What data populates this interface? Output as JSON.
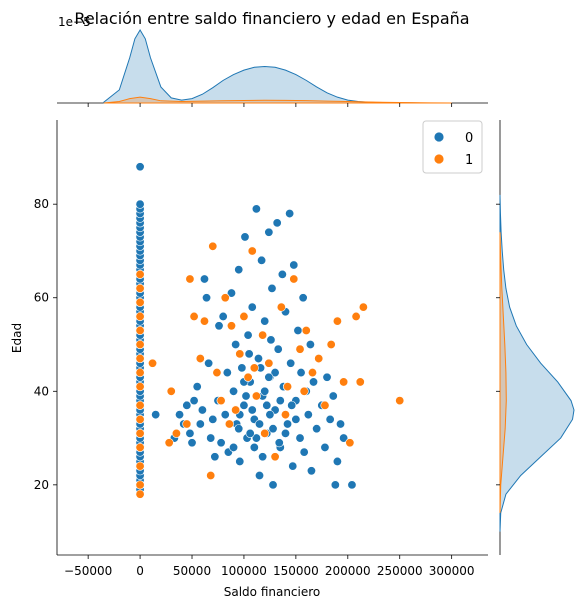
{
  "chart_data": {
    "type": "scatter",
    "title": "Relación entre saldo financiero y edad en España",
    "xlabel": "Saldo financiero",
    "ylabel": "Edad",
    "top_axis_multiplier": "1e−5",
    "xlim": [
      -80000,
      335000
    ],
    "ylim": [
      5,
      98
    ],
    "x_ticks": [
      -50000,
      0,
      50000,
      100000,
      150000,
      200000,
      250000,
      300000
    ],
    "x_tick_labels": [
      "−50000",
      "0",
      "50000",
      "100000",
      "150000",
      "200000",
      "250000",
      "300000"
    ],
    "y_ticks": [
      20,
      40,
      60,
      80
    ],
    "y_tick_labels": [
      "20",
      "40",
      "60",
      "80"
    ],
    "grid": false,
    "legend": {
      "placement": "top-right",
      "entries": [
        {
          "label": "0",
          "color": "#1f77b4"
        },
        {
          "label": "1",
          "color": "#ff7f0e"
        }
      ]
    },
    "series": [
      {
        "name": "0",
        "color": "#1f77b4",
        "zero_balance_ages": [
          18,
          19,
          20,
          21,
          22,
          23,
          24,
          25,
          26,
          27,
          28,
          29,
          30,
          31,
          32,
          33,
          34,
          35,
          36,
          37,
          38,
          39,
          40,
          41,
          42,
          43,
          44,
          45,
          46,
          47,
          48,
          49,
          50,
          51,
          52,
          53,
          54,
          55,
          56,
          57,
          58,
          59,
          60,
          61,
          62,
          63,
          64,
          65,
          66,
          67,
          68,
          69,
          70,
          71,
          72,
          73,
          74,
          75,
          76,
          77,
          78,
          79,
          80,
          88
        ],
        "points": [
          [
            15000,
            35
          ],
          [
            33000,
            30
          ],
          [
            38000,
            35
          ],
          [
            42000,
            33
          ],
          [
            45000,
            37
          ],
          [
            48000,
            31
          ],
          [
            50000,
            29
          ],
          [
            52000,
            38
          ],
          [
            55000,
            41
          ],
          [
            58000,
            33
          ],
          [
            60000,
            36
          ],
          [
            62000,
            64
          ],
          [
            64000,
            60
          ],
          [
            66000,
            46
          ],
          [
            68000,
            30
          ],
          [
            70000,
            34
          ],
          [
            72000,
            26
          ],
          [
            75000,
            38
          ],
          [
            76000,
            54
          ],
          [
            78000,
            29
          ],
          [
            80000,
            56
          ],
          [
            82000,
            35
          ],
          [
            84000,
            44
          ],
          [
            85000,
            27
          ],
          [
            88000,
            61
          ],
          [
            90000,
            40
          ],
          [
            92000,
            50
          ],
          [
            93000,
            33
          ],
          [
            95000,
            66
          ],
          [
            96000,
            25
          ],
          [
            98000,
            45
          ],
          [
            100000,
            37
          ],
          [
            101000,
            73
          ],
          [
            103000,
            30
          ],
          [
            104000,
            52
          ],
          [
            106000,
            42
          ],
          [
            108000,
            58
          ],
          [
            110000,
            34
          ],
          [
            112000,
            79
          ],
          [
            114000,
            47
          ],
          [
            115000,
            22
          ],
          [
            117000,
            68
          ],
          [
            118000,
            39
          ],
          [
            120000,
            55
          ],
          [
            122000,
            31
          ],
          [
            124000,
            74
          ],
          [
            125000,
            43
          ],
          [
            127000,
            62
          ],
          [
            128000,
            20
          ],
          [
            130000,
            36
          ],
          [
            132000,
            76
          ],
          [
            133000,
            49
          ],
          [
            135000,
            28
          ],
          [
            137000,
            65
          ],
          [
            138000,
            41
          ],
          [
            140000,
            57
          ],
          [
            142000,
            33
          ],
          [
            144000,
            78
          ],
          [
            145000,
            46
          ],
          [
            147000,
            24
          ],
          [
            148000,
            67
          ],
          [
            150000,
            38
          ],
          [
            152000,
            53
          ],
          [
            154000,
            30
          ],
          [
            155000,
            44
          ],
          [
            157000,
            60
          ],
          [
            158000,
            27
          ],
          [
            160000,
            40
          ],
          [
            162000,
            35
          ],
          [
            164000,
            50
          ],
          [
            165000,
            23
          ],
          [
            167000,
            42
          ],
          [
            170000,
            32
          ],
          [
            172000,
            47
          ],
          [
            175000,
            37
          ],
          [
            178000,
            28
          ],
          [
            180000,
            43
          ],
          [
            183000,
            34
          ],
          [
            186000,
            39
          ],
          [
            190000,
            25
          ],
          [
            193000,
            33
          ],
          [
            196000,
            30
          ],
          [
            204000,
            20
          ],
          [
            188000,
            20
          ],
          [
            110000,
            28
          ],
          [
            105000,
            48
          ],
          [
            125000,
            35
          ],
          [
            115000,
            33
          ],
          [
            135000,
            38
          ],
          [
            95000,
            32
          ],
          [
            120000,
            40
          ],
          [
            140000,
            31
          ],
          [
            100000,
            42
          ],
          [
            130000,
            44
          ],
          [
            118000,
            26
          ],
          [
            126000,
            51
          ],
          [
            108000,
            36
          ],
          [
            142000,
            41
          ],
          [
            112000,
            30
          ],
          [
            122000,
            37
          ],
          [
            90000,
            28
          ],
          [
            150000,
            34
          ],
          [
            102000,
            39
          ],
          [
            134000,
            29
          ],
          [
            116000,
            45
          ],
          [
            128000,
            32
          ],
          [
            96000,
            35
          ],
          [
            146000,
            37
          ],
          [
            106000,
            31
          ],
          [
            124000,
            43
          ]
        ]
      },
      {
        "name": "1",
        "color": "#ff7f0e",
        "zero_balance_ages": [
          18,
          20,
          24,
          28,
          31,
          34,
          37,
          41,
          44,
          47,
          50,
          53,
          56,
          59,
          62,
          65
        ],
        "points": [
          [
            12000,
            46
          ],
          [
            28000,
            29
          ],
          [
            30000,
            40
          ],
          [
            35000,
            31
          ],
          [
            45000,
            33
          ],
          [
            48000,
            64
          ],
          [
            52000,
            56
          ],
          [
            58000,
            47
          ],
          [
            62000,
            55
          ],
          [
            68000,
            22
          ],
          [
            70000,
            71
          ],
          [
            74000,
            44
          ],
          [
            78000,
            38
          ],
          [
            82000,
            60
          ],
          [
            88000,
            54
          ],
          [
            92000,
            36
          ],
          [
            96000,
            48
          ],
          [
            100000,
            56
          ],
          [
            104000,
            43
          ],
          [
            108000,
            70
          ],
          [
            112000,
            39
          ],
          [
            118000,
            52
          ],
          [
            124000,
            46
          ],
          [
            130000,
            26
          ],
          [
            136000,
            58
          ],
          [
            142000,
            41
          ],
          [
            148000,
            64
          ],
          [
            154000,
            49
          ],
          [
            160000,
            53
          ],
          [
            166000,
            44
          ],
          [
            172000,
            47
          ],
          [
            178000,
            37
          ],
          [
            184000,
            50
          ],
          [
            190000,
            55
          ],
          [
            196000,
            42
          ],
          [
            202000,
            29
          ],
          [
            208000,
            56
          ],
          [
            212000,
            42
          ],
          [
            215000,
            58
          ],
          [
            250000,
            38
          ],
          [
            86000,
            33
          ],
          [
            120000,
            31
          ],
          [
            140000,
            35
          ],
          [
            110000,
            45
          ],
          [
            158000,
            40
          ]
        ]
      }
    ],
    "marginal_top": {
      "series": [
        {
          "name": "0",
          "color": "#1f77b4",
          "x": [
            -35000,
            -20000,
            -10000,
            -5000,
            0,
            5000,
            10000,
            20000,
            30000,
            40000,
            50000,
            60000,
            70000,
            80000,
            90000,
            100000,
            110000,
            120000,
            130000,
            140000,
            150000,
            160000,
            170000,
            180000,
            190000,
            200000,
            210000,
            220000,
            230000,
            240000,
            250000,
            260000,
            270000,
            280000,
            290000,
            300000
          ],
          "density": [
            0.01,
            0.18,
            0.62,
            0.88,
            1.0,
            0.88,
            0.62,
            0.22,
            0.07,
            0.04,
            0.06,
            0.12,
            0.21,
            0.31,
            0.39,
            0.45,
            0.49,
            0.5,
            0.49,
            0.45,
            0.39,
            0.31,
            0.22,
            0.14,
            0.08,
            0.04,
            0.02,
            0.01,
            0.005,
            0.003,
            0.002,
            0.001,
            0.0005,
            0.0002,
            0.0001,
            0.0
          ]
        },
        {
          "name": "1",
          "color": "#ff7f0e",
          "x": [
            -35000,
            -20000,
            -10000,
            0,
            10000,
            20000,
            40000,
            60000,
            80000,
            100000,
            120000,
            140000,
            160000,
            180000,
            200000,
            220000,
            240000,
            260000,
            280000,
            300000
          ],
          "density": [
            0.0,
            0.02,
            0.06,
            0.08,
            0.06,
            0.03,
            0.02,
            0.025,
            0.03,
            0.035,
            0.038,
            0.036,
            0.032,
            0.026,
            0.02,
            0.014,
            0.009,
            0.005,
            0.002,
            0.0
          ]
        }
      ]
    },
    "marginal_right": {
      "series": [
        {
          "name": "0",
          "color": "#1f77b4",
          "y": [
            10,
            14,
            18,
            22,
            26,
            30,
            34,
            36,
            38,
            42,
            46,
            50,
            54,
            58,
            62,
            66,
            70,
            74,
            78,
            82
          ],
          "density": [
            0.0,
            0.01,
            0.08,
            0.28,
            0.55,
            0.82,
            0.98,
            1.0,
            0.96,
            0.78,
            0.55,
            0.36,
            0.22,
            0.13,
            0.08,
            0.05,
            0.03,
            0.015,
            0.006,
            0.0
          ]
        },
        {
          "name": "1",
          "color": "#ff7f0e",
          "y": [
            14,
            20,
            26,
            32,
            38,
            44,
            50,
            56,
            62,
            68,
            74
          ],
          "density": [
            0.0,
            0.01,
            0.04,
            0.07,
            0.085,
            0.08,
            0.065,
            0.045,
            0.025,
            0.01,
            0.0
          ]
        }
      ]
    }
  }
}
